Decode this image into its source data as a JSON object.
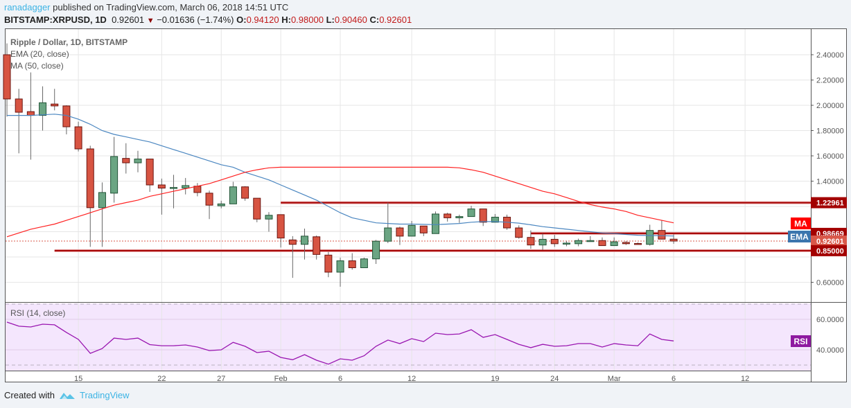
{
  "header": {
    "author": "ranadagger",
    "published_text": "published on TradingView.com, March 06, 2018 14:51 UTC",
    "symbol": "BITSTAMP:XRPUSD, 1D",
    "last_price": "0.92601",
    "change": "−0.01636 (−1.74%)",
    "open_label": "O:",
    "open": "0.94120",
    "high_label": "H:",
    "high": "0.98000",
    "low_label": "L:",
    "low": "0.90460",
    "close_label": "C:",
    "close": "0.92601",
    "direction": "down"
  },
  "legend": {
    "title": "Ripple / Dollar, 1D, BITSTAMP",
    "ema": "EMA (20, close)",
    "ma": "MA (50, close)",
    "rsi": "RSI (14, close)"
  },
  "price_axis": {
    "ticks": [
      "2.40000",
      "2.20000",
      "2.00000",
      "1.80000",
      "1.60000",
      "1.40000",
      "0.60000"
    ],
    "tick_values": [
      2.4,
      2.2,
      2.0,
      1.8,
      1.6,
      1.4,
      0.6
    ],
    "labels": [
      {
        "text": "1.22961",
        "value": 1.22961,
        "color": "#a30000"
      },
      {
        "text": "0.98669",
        "value": 0.98669,
        "color": "#a30000"
      },
      {
        "text": "0.92601",
        "value": 0.92601,
        "color": "#d9584a"
      },
      {
        "text": "0.85000",
        "value": 0.85,
        "color": "#a30000"
      }
    ],
    "ma_tag": "MA",
    "ema_tag": "EMA"
  },
  "rsi_axis": {
    "ticks": [
      "60.0000",
      "40.0000"
    ],
    "tick_values": [
      60,
      40
    ],
    "tag": "RSI"
  },
  "date_axis": {
    "ticks": [
      "15",
      "22",
      "27",
      "Feb",
      "6",
      "12",
      "19",
      "24",
      "Mar",
      "6",
      "12"
    ],
    "tick_dates": [
      "2018-01-15",
      "2018-01-22",
      "2018-01-27",
      "2018-02-01",
      "2018-02-06",
      "2018-02-12",
      "2018-02-19",
      "2018-02-24",
      "2018-03-01",
      "2018-03-06",
      "2018-03-12"
    ]
  },
  "footer": {
    "created_with": "Created with",
    "brand": "TradingView"
  },
  "colors": {
    "up_fill": "#6ba583",
    "up_border": "#225437",
    "down_fill": "#d75442",
    "down_border": "#6b1510",
    "ema": "#4a86c0",
    "ma": "#ff2020",
    "rsi": "#9915b0",
    "rsi_bg": "#f4e6fd",
    "level_line": "#a30000"
  },
  "chart_data": {
    "type": "candlestick",
    "price_ylim": [
      0.5,
      2.5
    ],
    "rsi_ylim": [
      25,
      75
    ],
    "rsi_bands": [
      70,
      30
    ],
    "grid": true,
    "first_date": "2018-01-09",
    "last_date": "2018-03-06",
    "ohlc": [
      [
        2.4,
        2.49,
        1.91,
        2.05
      ],
      [
        2.05,
        2.13,
        1.62,
        1.945
      ],
      [
        1.95,
        2.26,
        1.57,
        1.92
      ],
      [
        1.92,
        2.15,
        1.8,
        2.02
      ],
      [
        2.01,
        2.13,
        1.96,
        1.995
      ],
      [
        1.995,
        2.0,
        1.77,
        1.83
      ],
      [
        1.83,
        1.87,
        1.635,
        1.655
      ],
      [
        1.655,
        1.68,
        0.88,
        1.19
      ],
      [
        1.19,
        1.39,
        0.88,
        1.31
      ],
      [
        1.305,
        1.75,
        1.23,
        1.595
      ],
      [
        1.58,
        1.7,
        1.46,
        1.545
      ],
      [
        1.545,
        1.64,
        1.47,
        1.575
      ],
      [
        1.575,
        1.575,
        1.315,
        1.37
      ],
      [
        1.37,
        1.42,
        1.135,
        1.345
      ],
      [
        1.345,
        1.45,
        1.185,
        1.35
      ],
      [
        1.345,
        1.425,
        1.295,
        1.365
      ],
      [
        1.36,
        1.385,
        1.28,
        1.31
      ],
      [
        1.305,
        1.325,
        1.1,
        1.21
      ],
      [
        1.205,
        1.245,
        1.185,
        1.22
      ],
      [
        1.22,
        1.395,
        1.22,
        1.355
      ],
      [
        1.355,
        1.36,
        1.245,
        1.265
      ],
      [
        1.265,
        1.265,
        1.075,
        1.1
      ],
      [
        1.1,
        1.155,
        1.0,
        1.13
      ],
      [
        1.135,
        1.135,
        0.875,
        0.95
      ],
      [
        0.935,
        0.965,
        0.635,
        0.9
      ],
      [
        0.9,
        1.025,
        0.78,
        0.965
      ],
      [
        0.96,
        0.97,
        0.78,
        0.82
      ],
      [
        0.815,
        0.84,
        0.64,
        0.68
      ],
      [
        0.68,
        0.795,
        0.565,
        0.77
      ],
      [
        0.77,
        0.83,
        0.7,
        0.715
      ],
      [
        0.715,
        0.795,
        0.715,
        0.785
      ],
      [
        0.785,
        0.935,
        0.745,
        0.925
      ],
      [
        0.925,
        1.23,
        0.91,
        1.03
      ],
      [
        1.03,
        1.04,
        0.895,
        0.965
      ],
      [
        0.965,
        1.085,
        0.965,
        1.05
      ],
      [
        1.045,
        1.045,
        0.965,
        0.99
      ],
      [
        0.985,
        1.16,
        0.985,
        1.14
      ],
      [
        1.14,
        1.15,
        1.08,
        1.11
      ],
      [
        1.11,
        1.135,
        1.07,
        1.12
      ],
      [
        1.12,
        1.205,
        1.12,
        1.18
      ],
      [
        1.18,
        1.18,
        1.045,
        1.075
      ],
      [
        1.075,
        1.14,
        1.075,
        1.115
      ],
      [
        1.115,
        1.135,
        1.015,
        1.03
      ],
      [
        1.03,
        1.05,
        0.945,
        0.955
      ],
      [
        0.955,
        1.01,
        0.865,
        0.895
      ],
      [
        0.895,
        0.985,
        0.855,
        0.94
      ],
      [
        0.94,
        0.975,
        0.88,
        0.905
      ],
      [
        0.905,
        0.925,
        0.885,
        0.91
      ],
      [
        0.905,
        0.945,
        0.885,
        0.93
      ],
      [
        0.93,
        0.965,
        0.92,
        0.93
      ],
      [
        0.93,
        0.955,
        0.89,
        0.89
      ],
      [
        0.89,
        0.955,
        0.89,
        0.92
      ],
      [
        0.915,
        0.925,
        0.895,
        0.905
      ],
      [
        0.907,
        0.915,
        0.9,
        0.9
      ],
      [
        0.9,
        1.055,
        0.89,
        1.01
      ],
      [
        1.01,
        1.09,
        0.945,
        0.9412
      ],
      [
        0.9412,
        0.98,
        0.9046,
        0.92601
      ]
    ],
    "ema20": [
      1.92,
      1.92,
      1.92,
      1.925,
      1.93,
      1.92,
      1.89,
      1.85,
      1.8,
      1.77,
      1.75,
      1.73,
      1.71,
      1.68,
      1.65,
      1.62,
      1.59,
      1.56,
      1.53,
      1.51,
      1.47,
      1.44,
      1.41,
      1.37,
      1.33,
      1.29,
      1.25,
      1.2,
      1.15,
      1.11,
      1.09,
      1.07,
      1.065,
      1.06,
      1.06,
      1.058,
      1.056,
      1.06,
      1.065,
      1.075,
      1.08,
      1.08,
      1.075,
      1.068,
      1.055,
      1.04,
      1.03,
      1.02,
      1.01,
      1.0,
      0.99,
      0.985,
      0.978,
      0.972,
      0.97,
      0.968,
      0.966
    ],
    "ma50": [
      0.96,
      0.99,
      1.02,
      1.04,
      1.06,
      1.09,
      1.12,
      1.15,
      1.18,
      1.21,
      1.23,
      1.25,
      1.28,
      1.3,
      1.32,
      1.34,
      1.36,
      1.38,
      1.41,
      1.44,
      1.47,
      1.49,
      1.505,
      1.51,
      1.51,
      1.51,
      1.51,
      1.51,
      1.51,
      1.51,
      1.51,
      1.51,
      1.51,
      1.51,
      1.51,
      1.51,
      1.51,
      1.51,
      1.505,
      1.49,
      1.47,
      1.44,
      1.41,
      1.38,
      1.35,
      1.32,
      1.3,
      1.27,
      1.24,
      1.215,
      1.195,
      1.18,
      1.16,
      1.13,
      1.11,
      1.09,
      1.07
    ],
    "rsi14": [
      58.2,
      55.5,
      55,
      56.8,
      56.4,
      51.4,
      46.8,
      37.7,
      40.8,
      47.7,
      46.8,
      47.7,
      43.4,
      42.7,
      42.7,
      43.2,
      41.8,
      39.5,
      40,
      44.9,
      42.3,
      38.2,
      39.1,
      35,
      33.5,
      36.8,
      33.2,
      30.6,
      34.1,
      33.2,
      36.1,
      42.3,
      46.4,
      44.1,
      47.3,
      45.4,
      50.9,
      50,
      50.4,
      53.2,
      48.2,
      50,
      46.8,
      43.6,
      41.4,
      43.6,
      42.3,
      42.7,
      44.1,
      44.1,
      41.8,
      44.1,
      43.2,
      42.7,
      50.4,
      46.8,
      45.8
    ],
    "levels": [
      {
        "value": 1.22961,
        "from": "2018-02-01"
      },
      {
        "value": 0.98669,
        "from": "2018-02-22"
      },
      {
        "value": 0.85,
        "from": "2018-01-13"
      }
    ]
  }
}
